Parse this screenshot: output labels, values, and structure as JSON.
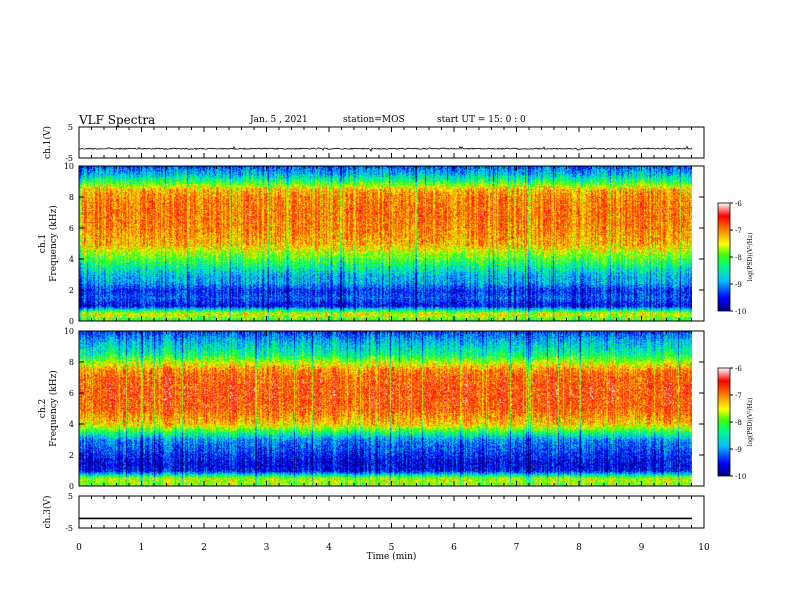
{
  "header": {
    "title": "VLF Spectra",
    "date": "Jan. 5 , 2021",
    "station": "station=MOS",
    "start": "start UT = 15: 0 : 0"
  },
  "chart_data": [
    {
      "type": "line",
      "name": "ch1-waveform",
      "ylabel": "ch.1(V)",
      "xlim": [
        0,
        10
      ],
      "ylim": [
        -5,
        5
      ],
      "yticks": [
        "5",
        "-5"
      ],
      "baseline": -2
    },
    {
      "type": "heatmap",
      "name": "ch1-spectrogram",
      "ylabel_lines": [
        "ch.1",
        "Frequency (kHz)"
      ],
      "xlim": [
        0,
        9.83
      ],
      "ylim": [
        0,
        10
      ],
      "yticks": [
        "0",
        "2",
        "4",
        "6",
        "8",
        "10"
      ],
      "colorbar": {
        "label": "log(PSD)(V²/Hz)",
        "range": [
          -10,
          -6
        ],
        "ticks": [
          "-6",
          "-7",
          "-8",
          "-9",
          "-10"
        ]
      },
      "profile": {
        "freq_khz": [
          0,
          0.5,
          1,
          1.5,
          2,
          2.5,
          3,
          3.5,
          4,
          5,
          6,
          7,
          8,
          8.5,
          9,
          9.5,
          10
        ],
        "log_psd": [
          -8.2,
          -7.4,
          -9.6,
          -9.2,
          -9.4,
          -8.9,
          -8.8,
          -8.4,
          -8.0,
          -7.2,
          -7.0,
          -6.9,
          -7.0,
          -7.2,
          -8.1,
          -8.8,
          -9.2
        ]
      }
    },
    {
      "type": "heatmap",
      "name": "ch2-spectrogram",
      "ylabel_lines": [
        "ch.2",
        "Frequency (kHz)"
      ],
      "xlim": [
        0,
        9.83
      ],
      "ylim": [
        0,
        10
      ],
      "yticks": [
        "0",
        "2",
        "4",
        "6",
        "8",
        "10"
      ],
      "colorbar": {
        "label": "log(PSD)(V²/Hz)",
        "range": [
          -10,
          -6
        ],
        "ticks": [
          "-6",
          "-7",
          "-8",
          "-9",
          "-10"
        ]
      },
      "profile": {
        "freq_khz": [
          0,
          0.5,
          1,
          1.5,
          2,
          3,
          3.5,
          4,
          5,
          6,
          7,
          7.5,
          8,
          8.5,
          9,
          9.5,
          10
        ],
        "log_psd": [
          -7.8,
          -7.6,
          -9.5,
          -9.6,
          -9.4,
          -9.0,
          -8.2,
          -7.3,
          -6.8,
          -6.7,
          -6.8,
          -7.0,
          -7.6,
          -8.3,
          -8.6,
          -8.9,
          -9.3
        ]
      }
    },
    {
      "type": "line",
      "name": "ch3-waveform",
      "ylabel": "ch.3(V)",
      "xlim": [
        0,
        10
      ],
      "ylim": [
        -5,
        5
      ],
      "yticks": [
        "5",
        "-5"
      ],
      "baseline": -2
    }
  ],
  "time_axis": {
    "label": "Time (min)",
    "ticks": [
      "0",
      "1",
      "2",
      "3",
      "4",
      "5",
      "6",
      "7",
      "8",
      "9",
      "10"
    ]
  },
  "colors": {
    "colormap": [
      "#00007f",
      "#0000ff",
      "#00bfff",
      "#00ff80",
      "#40ff00",
      "#ffff00",
      "#ff8000",
      "#ff0000",
      "#ffffff"
    ],
    "axis": "#000000"
  }
}
